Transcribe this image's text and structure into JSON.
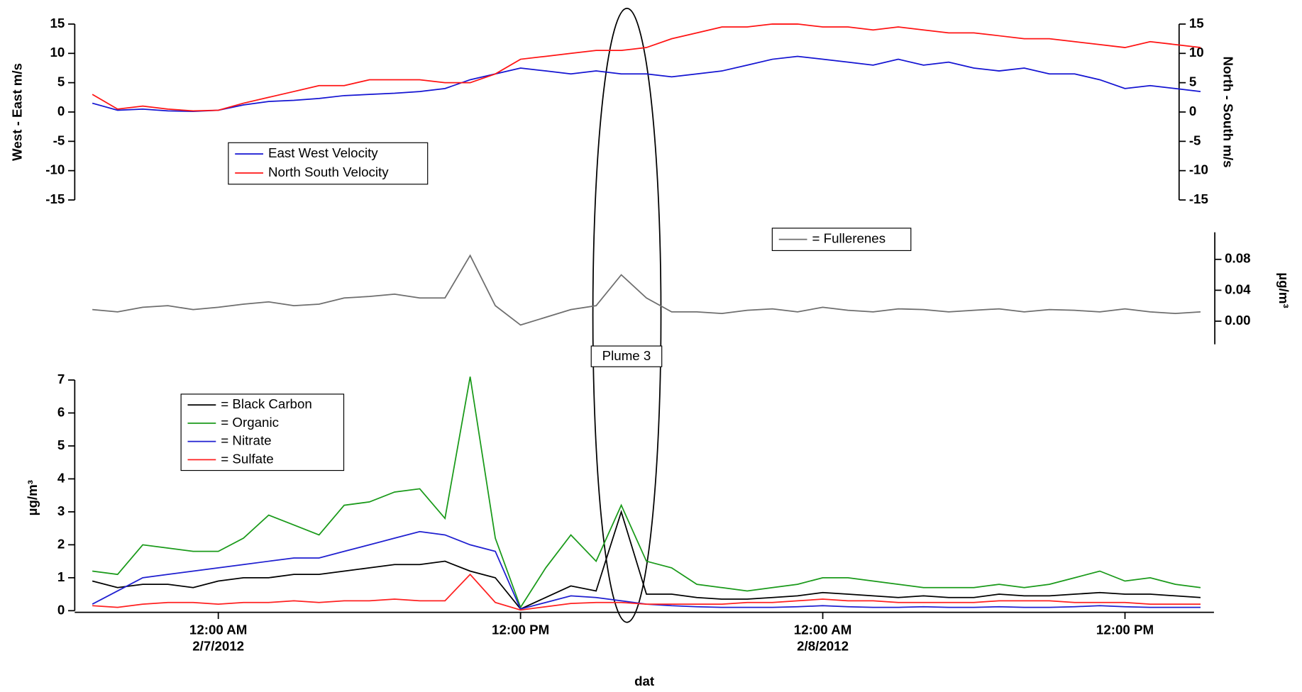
{
  "chart_data": [
    {
      "type": "line",
      "y_label": "West - East m/s",
      "y2_label": "North - South m/s",
      "x": [
        "2012-02-06 19:00",
        "2012-02-06 20:00",
        "2012-02-06 21:00",
        "2012-02-06 22:00",
        "2012-02-06 23:00",
        "2012-02-07 00:00",
        "2012-02-07 01:00",
        "2012-02-07 02:00",
        "2012-02-07 03:00",
        "2012-02-07 04:00",
        "2012-02-07 05:00",
        "2012-02-07 06:00",
        "2012-02-07 07:00",
        "2012-02-07 08:00",
        "2012-02-07 09:00",
        "2012-02-07 10:00",
        "2012-02-07 11:00",
        "2012-02-07 12:00",
        "2012-02-07 13:00",
        "2012-02-07 14:00",
        "2012-02-07 15:00",
        "2012-02-07 16:00",
        "2012-02-07 17:00",
        "2012-02-07 18:00",
        "2012-02-07 19:00",
        "2012-02-07 20:00",
        "2012-02-07 21:00",
        "2012-02-07 22:00",
        "2012-02-07 23:00",
        "2012-02-08 00:00",
        "2012-02-08 01:00",
        "2012-02-08 02:00",
        "2012-02-08 03:00",
        "2012-02-08 04:00",
        "2012-02-08 05:00",
        "2012-02-08 06:00",
        "2012-02-08 07:00",
        "2012-02-08 08:00",
        "2012-02-08 09:00",
        "2012-02-08 10:00",
        "2012-02-08 11:00",
        "2012-02-08 12:00",
        "2012-02-08 13:00",
        "2012-02-08 14:00",
        "2012-02-08 15:00"
      ],
      "xlim": [
        "2012-02-06 18:18",
        "2012-02-08 15:32"
      ],
      "ylim": [
        -15,
        15
      ],
      "yticks": [
        15,
        10,
        5,
        0,
        -5,
        -10,
        -15
      ],
      "y2lim": [
        -15,
        15
      ],
      "y2ticks": [
        15,
        10,
        5,
        0,
        -5,
        -10,
        -15
      ],
      "series": [
        {
          "name": "East West Velocity",
          "color": "#1414d2",
          "values": [
            1.5,
            0.3,
            0.5,
            0.2,
            0.1,
            0.3,
            1.2,
            1.8,
            2,
            2.3,
            2.8,
            3,
            3.2,
            3.5,
            4,
            5.5,
            6.5,
            7.5,
            7,
            6.5,
            7,
            6.5,
            6.5,
            6,
            6.5,
            7,
            8,
            9,
            9.5,
            9,
            8.5,
            8,
            9,
            8,
            8.5,
            7.5,
            7,
            7.5,
            6.5,
            6.5,
            5.5,
            4,
            4.5,
            4,
            3.5
          ]
        },
        {
          "name": "North South Velocity",
          "color": "#ff1414",
          "axis": "y2",
          "values": [
            3,
            0.5,
            1,
            0.5,
            0.2,
            0.3,
            1.5,
            2.5,
            3.5,
            4.5,
            4.5,
            5.5,
            5.5,
            5.5,
            5,
            5,
            6.5,
            9,
            9.5,
            10,
            10.5,
            10.5,
            11,
            12.5,
            13.5,
            14.5,
            14.5,
            15,
            15,
            14.5,
            14.5,
            14,
            14.5,
            14,
            13.5,
            13.5,
            13,
            12.5,
            12.5,
            12,
            11.5,
            11,
            12,
            11.5,
            11
          ]
        }
      ]
    },
    {
      "type": "line",
      "y_label": "µg/m³",
      "x": [
        "2012-02-06 19:00",
        "2012-02-06 20:00",
        "2012-02-06 21:00",
        "2012-02-06 22:00",
        "2012-02-06 23:00",
        "2012-02-07 00:00",
        "2012-02-07 01:00",
        "2012-02-07 02:00",
        "2012-02-07 03:00",
        "2012-02-07 04:00",
        "2012-02-07 05:00",
        "2012-02-07 06:00",
        "2012-02-07 07:00",
        "2012-02-07 08:00",
        "2012-02-07 09:00",
        "2012-02-07 10:00",
        "2012-02-07 11:00",
        "2012-02-07 12:00",
        "2012-02-07 13:00",
        "2012-02-07 14:00",
        "2012-02-07 15:00",
        "2012-02-07 16:00",
        "2012-02-07 17:00",
        "2012-02-07 18:00",
        "2012-02-07 19:00",
        "2012-02-07 20:00",
        "2012-02-07 21:00",
        "2012-02-07 22:00",
        "2012-02-07 23:00",
        "2012-02-08 00:00",
        "2012-02-08 01:00",
        "2012-02-08 02:00",
        "2012-02-08 03:00",
        "2012-02-08 04:00",
        "2012-02-08 05:00",
        "2012-02-08 06:00",
        "2012-02-08 07:00",
        "2012-02-08 08:00",
        "2012-02-08 09:00",
        "2012-02-08 10:00",
        "2012-02-08 11:00",
        "2012-02-08 12:00",
        "2012-02-08 13:00",
        "2012-02-08 14:00",
        "2012-02-08 15:00"
      ],
      "xlim": [
        "2012-02-06 18:18",
        "2012-02-08 15:32"
      ],
      "ylim": [
        -0.03,
        0.115
      ],
      "yticks": [
        0.08,
        0.04,
        {
          "value": 0,
          "label": "0.00"
        }
      ],
      "series": [
        {
          "name": "= Fullerenes",
          "color": "#6e6e6e",
          "values": [
            0.015,
            0.012,
            0.018,
            0.02,
            0.015,
            0.018,
            0.022,
            0.025,
            0.02,
            0.022,
            0.03,
            0.032,
            0.035,
            0.03,
            0.03,
            0.085,
            0.02,
            -0.005,
            0.005,
            0.015,
            0.02,
            0.06,
            0.03,
            0.012,
            0.012,
            0.01,
            0.014,
            0.016,
            0.012,
            0.018,
            0.014,
            0.012,
            0.016,
            0.015,
            0.012,
            0.014,
            0.016,
            0.012,
            0.015,
            0.014,
            0.012,
            0.016,
            0.012,
            0.01,
            0.012
          ]
        }
      ]
    },
    {
      "type": "line",
      "y_label": "µg/m³",
      "x_label": "dat",
      "annotations": [
        "Plume 3"
      ],
      "x": [
        "2012-02-06 19:00",
        "2012-02-06 20:00",
        "2012-02-06 21:00",
        "2012-02-06 22:00",
        "2012-02-06 23:00",
        "2012-02-07 00:00",
        "2012-02-07 01:00",
        "2012-02-07 02:00",
        "2012-02-07 03:00",
        "2012-02-07 04:00",
        "2012-02-07 05:00",
        "2012-02-07 06:00",
        "2012-02-07 07:00",
        "2012-02-07 08:00",
        "2012-02-07 09:00",
        "2012-02-07 10:00",
        "2012-02-07 11:00",
        "2012-02-07 12:00",
        "2012-02-07 13:00",
        "2012-02-07 14:00",
        "2012-02-07 15:00",
        "2012-02-07 16:00",
        "2012-02-07 17:00",
        "2012-02-07 18:00",
        "2012-02-07 19:00",
        "2012-02-07 20:00",
        "2012-02-07 21:00",
        "2012-02-07 22:00",
        "2012-02-07 23:00",
        "2012-02-08 00:00",
        "2012-02-08 01:00",
        "2012-02-08 02:00",
        "2012-02-08 03:00",
        "2012-02-08 04:00",
        "2012-02-08 05:00",
        "2012-02-08 06:00",
        "2012-02-08 07:00",
        "2012-02-08 08:00",
        "2012-02-08 09:00",
        "2012-02-08 10:00",
        "2012-02-08 11:00",
        "2012-02-08 12:00",
        "2012-02-08 13:00",
        "2012-02-08 14:00",
        "2012-02-08 15:00"
      ],
      "xlim": [
        "2012-02-06 18:18",
        "2012-02-08 15:32"
      ],
      "xticks": [
        {
          "value": "2012-02-07 00:00",
          "label": [
            "12:00 AM",
            "2/7/2012"
          ]
        },
        {
          "value": "2012-02-07 12:00",
          "label": [
            "12:00 PM"
          ]
        },
        {
          "value": "2012-02-08 00:00",
          "label": [
            "12:00 AM",
            "2/8/2012"
          ]
        },
        {
          "value": "2012-02-08 12:00",
          "label": [
            "12:00 PM"
          ]
        }
      ],
      "ylim": [
        0,
        7
      ],
      "yticks": [
        0,
        1,
        2,
        3,
        4,
        5,
        6,
        7
      ],
      "series": [
        {
          "name": "= Black Carbon",
          "color": "#000000",
          "values": [
            0.9,
            0.7,
            0.8,
            0.8,
            0.7,
            0.9,
            1,
            1,
            1.1,
            1.1,
            1.2,
            1.3,
            1.4,
            1.4,
            1.5,
            1.2,
            1,
            0.05,
            0.4,
            0.75,
            0.6,
            3,
            0.5,
            0.5,
            0.4,
            0.35,
            0.35,
            0.4,
            0.45,
            0.55,
            0.5,
            0.45,
            0.4,
            0.45,
            0.4,
            0.4,
            0.5,
            0.45,
            0.45,
            0.5,
            0.55,
            0.5,
            0.5,
            0.45,
            0.4
          ]
        },
        {
          "name": "= Organic",
          "color": "#1a9a1a",
          "values": [
            1.2,
            1.1,
            2,
            1.9,
            1.8,
            1.8,
            2.2,
            2.9,
            2.6,
            2.3,
            3.2,
            3.3,
            3.6,
            3.7,
            2.8,
            7.1,
            2.2,
            0.1,
            1.3,
            2.3,
            1.5,
            3.2,
            1.5,
            1.3,
            0.8,
            0.7,
            0.6,
            0.7,
            0.8,
            1,
            1,
            0.9,
            0.8,
            0.7,
            0.7,
            0.7,
            0.8,
            0.7,
            0.8,
            1,
            1.2,
            0.9,
            1,
            0.8,
            0.7
          ]
        },
        {
          "name": "= Nitrate",
          "color": "#1f1fd0",
          "values": [
            0.2,
            0.6,
            1,
            1.1,
            1.2,
            1.3,
            1.4,
            1.5,
            1.6,
            1.6,
            1.8,
            2,
            2.2,
            2.4,
            2.3,
            2,
            1.8,
            0.05,
            0.25,
            0.45,
            0.4,
            0.3,
            0.2,
            0.15,
            0.12,
            0.1,
            0.1,
            0.1,
            0.12,
            0.15,
            0.12,
            0.1,
            0.1,
            0.12,
            0.1,
            0.1,
            0.12,
            0.1,
            0.1,
            0.12,
            0.15,
            0.12,
            0.1,
            0.1,
            0.1
          ]
        },
        {
          "name": "= Sulfate",
          "color": "#ff2020",
          "values": [
            0.15,
            0.1,
            0.2,
            0.25,
            0.25,
            0.2,
            0.25,
            0.25,
            0.3,
            0.25,
            0.3,
            0.3,
            0.35,
            0.3,
            0.3,
            1.1,
            0.25,
            0.02,
            0.12,
            0.22,
            0.25,
            0.25,
            0.2,
            0.2,
            0.2,
            0.2,
            0.25,
            0.25,
            0.3,
            0.35,
            0.3,
            0.3,
            0.25,
            0.25,
            0.25,
            0.25,
            0.3,
            0.3,
            0.3,
            0.25,
            0.25,
            0.25,
            0.2,
            0.2,
            0.2
          ]
        }
      ]
    }
  ]
}
